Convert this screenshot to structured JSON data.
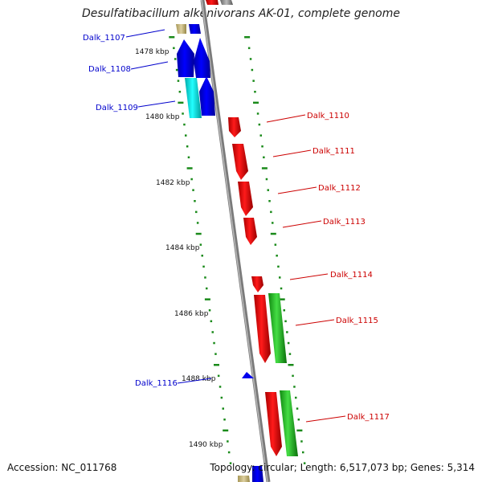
{
  "title": "Desulfatibacillum alkenivorans AK-01, complete genome",
  "footer": {
    "accession": "Accession: NC_011768",
    "info": "Topology: circular; Length: 6,517,073 bp; Genes: 5,314"
  },
  "colors": {
    "backbone": "#888888",
    "tick": "#1a8a1a",
    "reverse_gene": "#0000ee",
    "forward_gene": "#ee0000",
    "label_blue": "#0000cc",
    "label_red": "#cc0000",
    "cyan_gene": "#00dddd",
    "green_gene": "#22bb22",
    "khaki_gene": "#c8b878"
  },
  "kbp_labels": [
    "1478 kbp",
    "1480 kbp",
    "1482 kbp",
    "1484 kbp",
    "1486 kbp",
    "1488 kbp",
    "1490 kbp"
  ],
  "genes_left": [
    "Dalk_1107",
    "Dalk_1108",
    "Dalk_1109",
    "Dalk_1116"
  ],
  "genes_right": [
    "Dalk_1110",
    "Dalk_1111",
    "Dalk_1112",
    "Dalk_1113",
    "Dalk_1114",
    "Dalk_1115",
    "Dalk_1117"
  ]
}
